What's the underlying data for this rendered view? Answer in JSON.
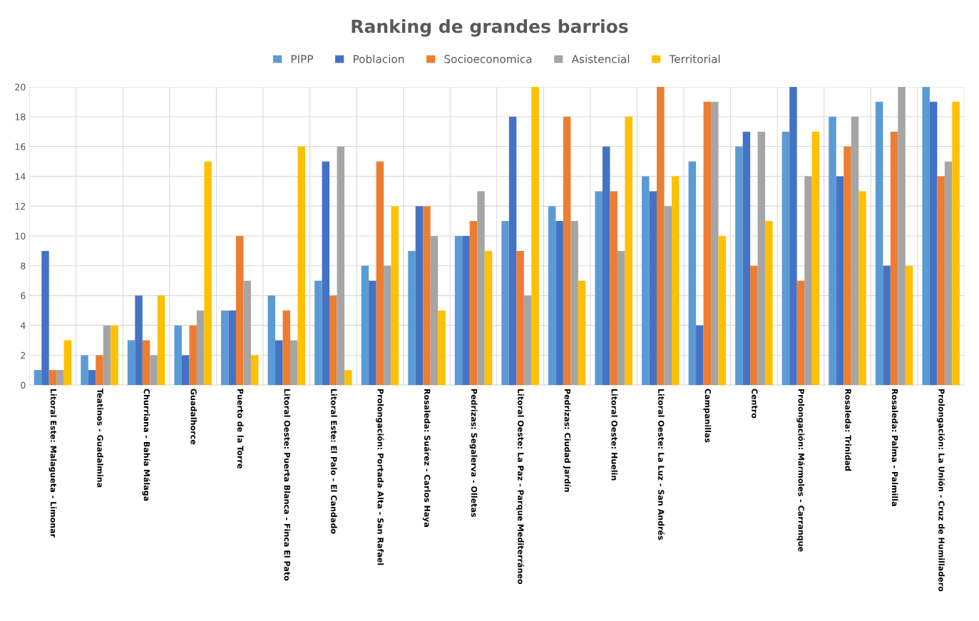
{
  "chart_data": {
    "type": "bar",
    "title": "Ranking de grandes barrios",
    "categories": [
      "Litoral Este: Malagueta - Limonar",
      "Teatinos - Guadalmina",
      "Churriana - Bahía Málaga",
      "Guadalhorce",
      "Puerto de la Torre",
      "Litoral Oeste: Puerta Blanca - Finca El Pato",
      "Litoral Este: El Palo - El Candado",
      "Prolongación: Portada Alta - San Rafael",
      "Rosaleda: Suárez - Carlos Haya",
      "Pedrizas: Segalerva - Olletas",
      "Litoral Oeste: La Paz - Parque Mediterráneo",
      "Pedrizas: Ciudad Jardín",
      "Litoral Oeste: Huelin",
      "Litoral Oeste: La Luz - San Andrés",
      "Campanillas",
      "Centro",
      "Prolongación: Mármoles - Carranque",
      "Rosaleda: Trinidad",
      "Rosaleda: Palma - Palmilla",
      "Prolongación: La Unión - Cruz de Humilladero"
    ],
    "series": [
      {
        "name": "PIPP",
        "color": "#5b9bd5",
        "values": [
          1,
          2,
          3,
          4,
          5,
          6,
          7,
          8,
          9,
          10,
          11,
          12,
          13,
          14,
          15,
          16,
          17,
          18,
          19,
          20
        ]
      },
      {
        "name": "Poblacion",
        "color": "#4472c4",
        "values": [
          9,
          1,
          6,
          2,
          5,
          3,
          15,
          7,
          12,
          10,
          18,
          11,
          16,
          13,
          4,
          17,
          20,
          14,
          8,
          19
        ]
      },
      {
        "name": "Socioeconomica",
        "color": "#ed7d31",
        "values": [
          1,
          2,
          3,
          4,
          10,
          5,
          6,
          15,
          12,
          11,
          9,
          18,
          13,
          20,
          19,
          8,
          7,
          16,
          17,
          14
        ]
      },
      {
        "name": "Asistencial",
        "color": "#a5a5a5",
        "values": [
          1,
          4,
          2,
          5,
          7,
          3,
          16,
          8,
          10,
          13,
          6,
          11,
          9,
          12,
          19,
          17,
          14,
          18,
          20,
          15
        ]
      },
      {
        "name": "Territorial",
        "color": "#ffc000",
        "values": [
          3,
          4,
          6,
          15,
          2,
          16,
          1,
          12,
          5,
          9,
          20,
          7,
          18,
          14,
          10,
          11,
          17,
          13,
          8,
          19
        ]
      }
    ],
    "ylim": [
      0,
      20
    ],
    "yticks": [
      0,
      2,
      4,
      6,
      8,
      10,
      12,
      14,
      16,
      18,
      20
    ],
    "grid": true,
    "legend": "top"
  }
}
